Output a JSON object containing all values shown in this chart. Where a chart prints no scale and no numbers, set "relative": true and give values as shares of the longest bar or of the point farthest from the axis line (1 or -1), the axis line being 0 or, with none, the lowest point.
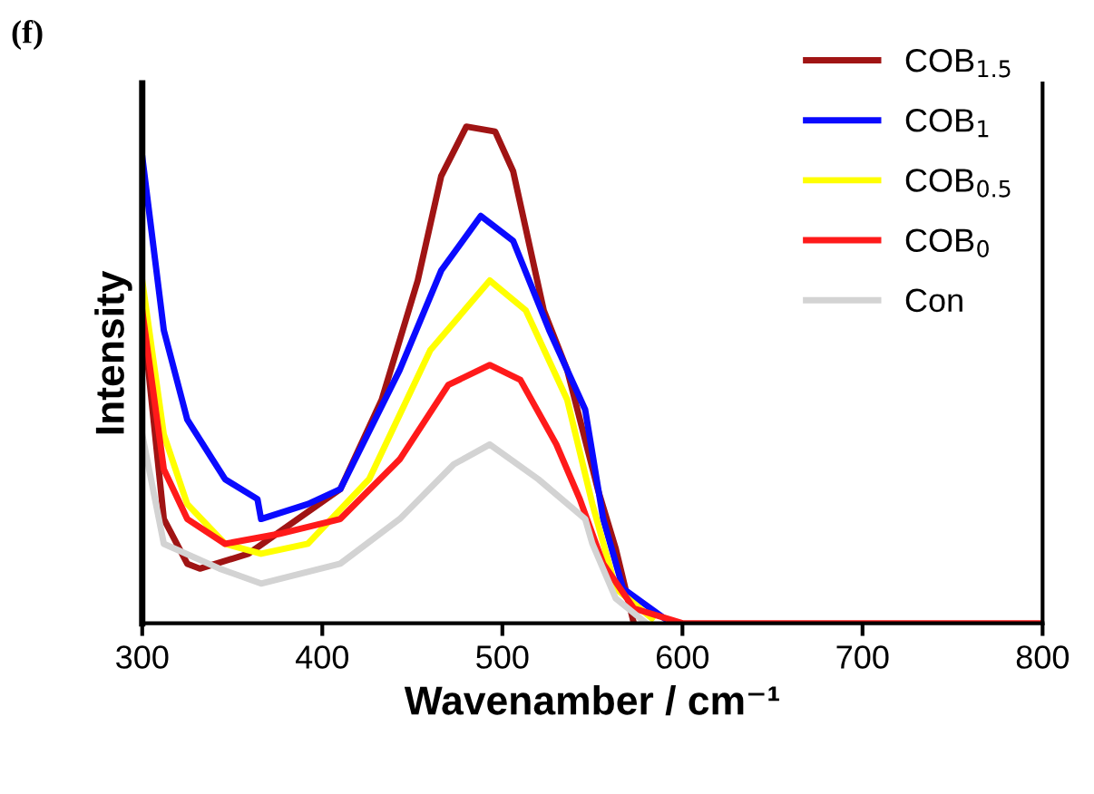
{
  "chart_data": {
    "type": "line",
    "relative": true,
    "xlabel": "Wavenamber / cm⁻¹",
    "ylabel": "Intensity",
    "annotations": [
      "(f)"
    ],
    "xlim": [
      300,
      800
    ],
    "xticks": [
      300,
      400,
      500,
      600,
      700,
      800
    ],
    "tick_labels": "x",
    "grid": false,
    "legend": "top right",
    "series": [
      {
        "name": "COB$_{1.5}$",
        "color": "#a01414",
        "x": [
          300,
          312,
          325,
          332,
          359,
          410,
          433,
          453,
          466,
          480,
          496,
          506,
          523,
          536,
          553,
          563,
          573
        ],
        "values": [
          0.63,
          0.21,
          0.12,
          0.11,
          0.14,
          0.27,
          0.45,
          0.69,
          0.9,
          1.0,
          0.99,
          0.91,
          0.63,
          0.51,
          0.27,
          0.15,
          0.0
        ]
      },
      {
        "name": "COB$_{1}$",
        "color": "#0a0aff",
        "x": [
          300,
          312,
          325,
          346,
          364,
          366,
          392,
          410,
          443,
          466,
          488,
          506,
          526,
          546,
          556,
          567,
          590
        ],
        "values": [
          0.94,
          0.59,
          0.41,
          0.29,
          0.25,
          0.21,
          0.24,
          0.27,
          0.51,
          0.71,
          0.82,
          0.77,
          0.59,
          0.43,
          0.21,
          0.07,
          0.01
        ]
      },
      {
        "name": "COB$_{0.5}$",
        "color": "#ffff00",
        "x": [
          300,
          312,
          325,
          346,
          366,
          392,
          426,
          460,
          493,
          513,
          536,
          550,
          563,
          583
        ],
        "values": [
          0.69,
          0.38,
          0.24,
          0.16,
          0.14,
          0.16,
          0.29,
          0.55,
          0.69,
          0.63,
          0.45,
          0.24,
          0.07,
          0.01
        ]
      },
      {
        "name": "COB$_{0}$",
        "color": "#ff1a1a",
        "x": [
          300,
          312,
          325,
          346,
          376,
          410,
          443,
          470,
          493,
          510,
          530,
          543,
          556,
          573,
          600,
          700,
          800
        ],
        "values": [
          0.63,
          0.31,
          0.21,
          0.16,
          0.18,
          0.21,
          0.33,
          0.48,
          0.52,
          0.49,
          0.36,
          0.25,
          0.12,
          0.03,
          0.0,
          0.0,
          0.0
        ]
      },
      {
        "name": "Con",
        "color": "#d3d3d3",
        "x": [
          300,
          312,
          343,
          366,
          410,
          443,
          473,
          493,
          520,
          546,
          550,
          563,
          580
        ],
        "values": [
          0.38,
          0.16,
          0.11,
          0.08,
          0.12,
          0.21,
          0.32,
          0.36,
          0.29,
          0.21,
          0.16,
          0.05,
          0.0
        ]
      }
    ]
  }
}
